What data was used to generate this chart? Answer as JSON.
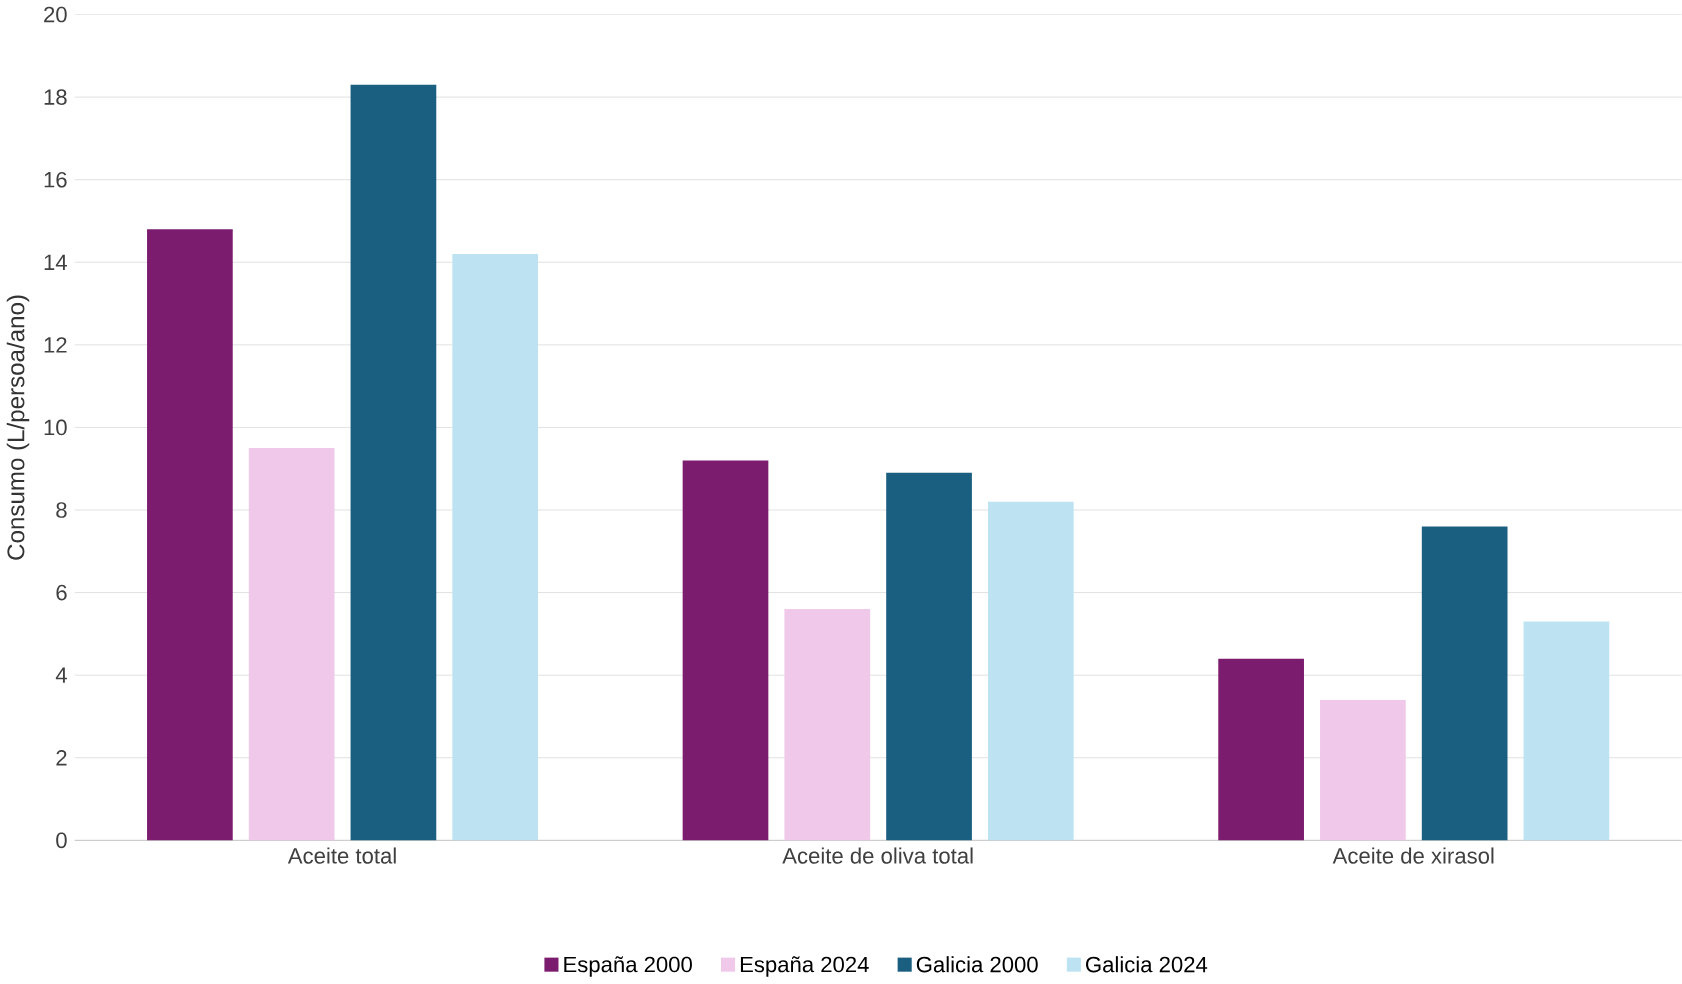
{
  "chart_data": {
    "type": "bar",
    "ylabel": "Consumo (L/persoa/ano)",
    "categories": [
      "Aceite total",
      "Aceite de oliva total",
      "Aceite de xirasol"
    ],
    "series": [
      {
        "name": "España 2000",
        "color": "#7b1c6e",
        "values": [
          14.8,
          9.2,
          4.4
        ]
      },
      {
        "name": "España 2024",
        "color": "#f0c8ea",
        "values": [
          9.5,
          5.6,
          3.4
        ]
      },
      {
        "name": "Galicia 2000",
        "color": "#1a5e80",
        "values": [
          18.3,
          8.9,
          7.6
        ]
      },
      {
        "name": "Galicia 2024",
        "color": "#bde3f3",
        "values": [
          14.2,
          8.2,
          5.3
        ]
      }
    ],
    "ylim": [
      0,
      20
    ],
    "yticks": [
      0,
      2,
      4,
      6,
      8,
      10,
      12,
      14,
      16,
      18,
      20
    ],
    "grid": "y",
    "legend": "bottom"
  }
}
